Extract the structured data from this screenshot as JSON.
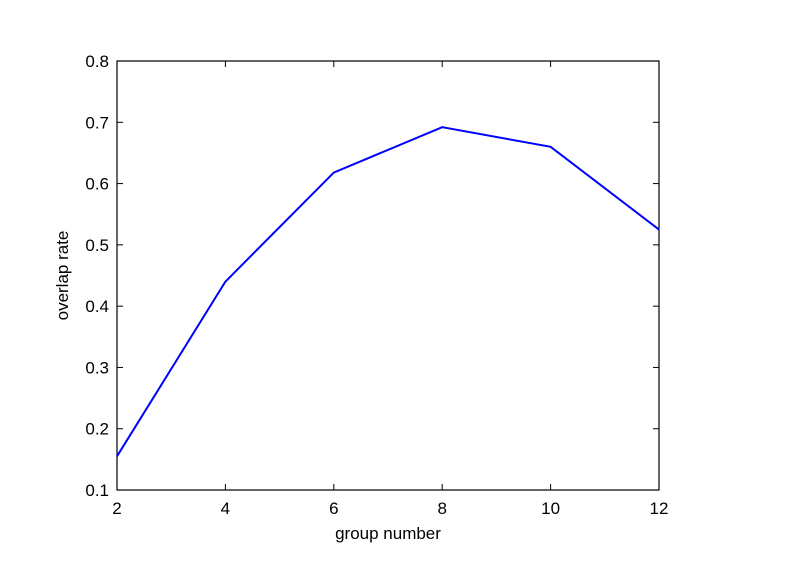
{
  "chart_data": {
    "type": "line",
    "title": "",
    "xlabel": "group number",
    "ylabel": "overlap rate",
    "xlim": [
      2,
      12
    ],
    "ylim": [
      0.1,
      0.8
    ],
    "x_ticks": [
      "2",
      "4",
      "6",
      "8",
      "10",
      "12"
    ],
    "y_ticks": [
      "0.1",
      "0.2",
      "0.3",
      "0.4",
      "0.5",
      "0.6",
      "0.7",
      "0.8"
    ],
    "grid": false,
    "legend": "none",
    "series": [
      {
        "color": "#0000ff",
        "x": [
          2,
          4,
          6,
          8,
          10,
          12
        ],
        "y": [
          0.155,
          0.44,
          0.618,
          0.692,
          0.66,
          0.525
        ]
      }
    ]
  }
}
